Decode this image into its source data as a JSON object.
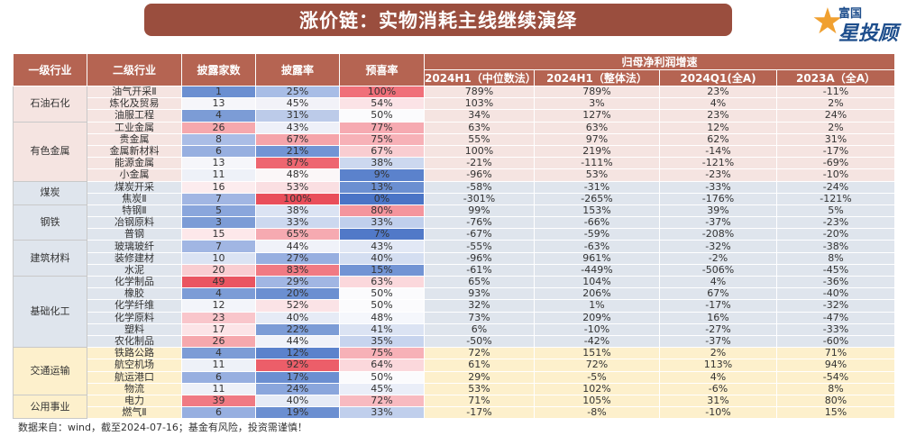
{
  "title": "涨价链：实物消耗主线继续演绎",
  "logo": {
    "top": "富国",
    "main": "星投顾",
    "icon": "star-icon"
  },
  "headers": {
    "col1": "一级行业",
    "col2": "二级行业",
    "col3": "披露家数",
    "col4": "披露率",
    "col5": "预喜率",
    "group": "归母净利润增速",
    "g1": "2024H1（中位数法）",
    "g2": "2024H1（整体法）",
    "g3": "2024Q1(全A)",
    "g4": "2023A（全A）"
  },
  "colors": {
    "header": "#b56452",
    "title": "#9a4e3e",
    "band_pink": "#f5e4e1",
    "band_blue": "#dfe5ed",
    "band_yellow": "#fdf0cc"
  },
  "groups": [
    {
      "name": "石油石化",
      "band": "pink",
      "rows": [
        {
          "sub": "油气开采Ⅱ",
          "count": "1",
          "disc": "25%",
          "pre": "100%",
          "g1": "789%",
          "g2": "789%",
          "g3": "23%",
          "g4": "-11%",
          "c_count": "#6b8fd1",
          "c_disc": "#a8bde6",
          "c_pre": "#f0707a"
        },
        {
          "sub": "炼化及贸易",
          "count": "13",
          "disc": "45%",
          "pre": "54%",
          "g1": "103%",
          "g2": "3%",
          "g3": "4%",
          "g4": "2%",
          "c_count": "#f6f6fa",
          "c_disc": "#f2f2f8",
          "c_pre": "#fbe3e6"
        },
        {
          "sub": "油服工程",
          "count": "4",
          "disc": "31%",
          "pre": "50%",
          "g1": "34%",
          "g2": "127%",
          "g3": "23%",
          "g4": "24%",
          "c_count": "#7c9cd6",
          "c_disc": "#bccbe9",
          "c_pre": "#fbfbfd"
        }
      ]
    },
    {
      "name": "有色金属",
      "band": "pink",
      "rows": [
        {
          "sub": "工业金属",
          "count": "26",
          "disc": "43%",
          "pre": "77%",
          "g1": "63%",
          "g2": "63%",
          "g3": "12%",
          "g4": "2%",
          "c_count": "#f6a8ad",
          "c_disc": "#eef0f8",
          "c_pre": "#f6aab1"
        },
        {
          "sub": "贵金属",
          "count": "8",
          "disc": "67%",
          "pre": "75%",
          "g1": "55%",
          "g2": "97%",
          "g3": "62%",
          "g4": "31%",
          "c_count": "#aabde6",
          "c_disc": "#f5a4aa",
          "c_pre": "#f7b1b7"
        },
        {
          "sub": "金属新材料",
          "count": "6",
          "disc": "21%",
          "pre": "67%",
          "g1": "100%",
          "g2": "219%",
          "g3": "-14%",
          "g4": "-17%",
          "c_count": "#97afe0",
          "c_disc": "#7294d4",
          "c_pre": "#f9cdd1"
        },
        {
          "sub": "能源金属",
          "count": "13",
          "disc": "87%",
          "pre": "38%",
          "g1": "-21%",
          "g2": "-111%",
          "g3": "-121%",
          "g4": "-69%",
          "c_count": "#f6f6fa",
          "c_disc": "#ee6670",
          "c_pre": "#ccd8ef"
        },
        {
          "sub": "小金属",
          "count": "11",
          "disc": "48%",
          "pre": "9%",
          "g1": "-96%",
          "g2": "53%",
          "g3": "-23%",
          "g4": "-10%",
          "c_count": "#eef1f8",
          "c_disc": "#fbf7f8",
          "c_pre": "#5b82cc"
        }
      ]
    },
    {
      "name": "煤炭",
      "band": "blue",
      "rows": [
        {
          "sub": "煤炭开采",
          "count": "16",
          "disc": "53%",
          "pre": "13%",
          "g1": "-58%",
          "g2": "-31%",
          "g3": "-33%",
          "g4": "-24%",
          "c_count": "#fcecee",
          "c_disc": "#fadfe2",
          "c_pre": "#6b8fd1"
        },
        {
          "sub": "焦炭Ⅱ",
          "count": "7",
          "disc": "100%",
          "pre": "0%",
          "g1": "-301%",
          "g2": "-265%",
          "g3": "-176%",
          "g4": "-121%",
          "c_count": "#a1b6e3",
          "c_disc": "#e94e5a",
          "c_pre": "#4a74c6"
        }
      ]
    },
    {
      "name": "钢铁",
      "band": "blue",
      "rows": [
        {
          "sub": "特钢Ⅱ",
          "count": "5",
          "disc": "38%",
          "pre": "80%",
          "g1": "99%",
          "g2": "153%",
          "g3": "39%",
          "g4": "5%",
          "c_count": "#8aa6dc",
          "c_disc": "#dbe3f3",
          "c_pre": "#f4959d"
        },
        {
          "sub": "冶钢原料",
          "count": "3",
          "disc": "33%",
          "pre": "33%",
          "g1": "-76%",
          "g2": "-66%",
          "g3": "-37%",
          "g4": "-23%",
          "c_count": "#7c9cd6",
          "c_disc": "#ccd8ef",
          "c_pre": "#c0cfec"
        },
        {
          "sub": "普钢",
          "count": "15",
          "disc": "65%",
          "pre": "7%",
          "g1": "-67%",
          "g2": "-59%",
          "g3": "-208%",
          "g4": "-20%",
          "c_count": "#fde8ea",
          "c_disc": "#f6aab1",
          "c_pre": "#5179c8"
        }
      ]
    },
    {
      "name": "建筑材料",
      "band": "blue",
      "rows": [
        {
          "sub": "玻璃玻纤",
          "count": "7",
          "disc": "44%",
          "pre": "43%",
          "g1": "-55%",
          "g2": "-63%",
          "g3": "-32%",
          "g4": "-38%",
          "c_count": "#a1b6e3",
          "c_disc": "#f0f2f9",
          "c_pre": "#e2e8f5"
        },
        {
          "sub": "装修建材",
          "count": "10",
          "disc": "27%",
          "pre": "40%",
          "g1": "-96%",
          "g2": "961%",
          "g3": "-2%",
          "g4": "8%",
          "c_count": "#dbe3f3",
          "c_disc": "#97afe0",
          "c_pre": "#d4def1"
        },
        {
          "sub": "水泥",
          "count": "20",
          "disc": "83%",
          "pre": "15%",
          "g1": "-61%",
          "g2": "-449%",
          "g3": "-506%",
          "g4": "-45%",
          "c_count": "#f9cdd1",
          "c_disc": "#f07a83",
          "c_pre": "#7294d4"
        }
      ]
    },
    {
      "name": "基础化工",
      "band": "blue",
      "rows": [
        {
          "sub": "化学制品",
          "count": "49",
          "disc": "29%",
          "pre": "63%",
          "g1": "65%",
          "g2": "104%",
          "g3": "4%",
          "g4": "-36%",
          "c_count": "#ea5561",
          "c_disc": "#a1b6e3",
          "c_pre": "#fbd8dc"
        },
        {
          "sub": "橡胶",
          "count": "4",
          "disc": "20%",
          "pre": "50%",
          "g1": "93%",
          "g2": "206%",
          "g3": "67%",
          "g4": "-40%",
          "c_count": "#7c9cd6",
          "c_disc": "#6b8fd1",
          "c_pre": "#fbfbfd"
        },
        {
          "sub": "化学纤维",
          "count": "12",
          "disc": "52%",
          "pre": "50%",
          "g1": "32%",
          "g2": "1%",
          "g3": "-17%",
          "g4": "-32%",
          "c_count": "#f3f5fa",
          "c_disc": "#fbe3e6",
          "c_pre": "#fbfbfd"
        },
        {
          "sub": "化学原料",
          "count": "23",
          "disc": "40%",
          "pre": "48%",
          "g1": "73%",
          "g2": "209%",
          "g3": "16%",
          "g4": "-47%",
          "c_count": "#f9c6cb",
          "c_disc": "#e6ebf6",
          "c_pre": "#f5f7fc"
        },
        {
          "sub": "塑料",
          "count": "17",
          "disc": "22%",
          "pre": "41%",
          "g1": "6%",
          "g2": "-10%",
          "g3": "-27%",
          "g4": "-33%",
          "c_count": "#fce4e7",
          "c_disc": "#7c9cd6",
          "c_pre": "#dbe3f3"
        },
        {
          "sub": "农化制品",
          "count": "26",
          "disc": "44%",
          "pre": "35%",
          "g1": "-50%",
          "g2": "-42%",
          "g3": "-37%",
          "g4": "-60%",
          "c_count": "#f6a8ad",
          "c_disc": "#f0f2f9",
          "c_pre": "#c7d4ee"
        }
      ]
    },
    {
      "name": "交通运输",
      "band": "yellow",
      "rows": [
        {
          "sub": "铁路公路",
          "count": "4",
          "disc": "12%",
          "pre": "75%",
          "g1": "72%",
          "g2": "151%",
          "g3": "2%",
          "g4": "71%",
          "c_count": "#7c9cd6",
          "c_disc": "#5b82cc",
          "c_pre": "#f7b1b7"
        },
        {
          "sub": "航空机场",
          "count": "11",
          "disc": "92%",
          "pre": "64%",
          "g1": "61%",
          "g2": "72%",
          "g3": "113%",
          "g4": "94%",
          "c_count": "#eef1f8",
          "c_disc": "#ec5e69",
          "c_pre": "#fbd8dc"
        },
        {
          "sub": "航运港口",
          "count": "6",
          "disc": "17%",
          "pre": "50%",
          "g1": "29%",
          "g2": "-5%",
          "g3": "4%",
          "g4": "-54%",
          "c_count": "#97afe0",
          "c_disc": "#6b8fd1",
          "c_pre": "#fbfbfd"
        },
        {
          "sub": "物流",
          "count": "11",
          "disc": "24%",
          "pre": "45%",
          "g1": "53%",
          "g2": "102%",
          "g3": "-6%",
          "g4": "8%",
          "c_count": "#eef1f8",
          "c_disc": "#8aa6dc",
          "c_pre": "#eaeef8"
        }
      ]
    },
    {
      "name": "公用事业",
      "band": "yellow",
      "rows": [
        {
          "sub": "电力",
          "count": "39",
          "disc": "40%",
          "pre": "72%",
          "g1": "71%",
          "g2": "105%",
          "g3": "31%",
          "g4": "80%",
          "c_count": "#f07a83",
          "c_disc": "#e6ebf6",
          "c_pre": "#f8bac0"
        },
        {
          "sub": "燃气Ⅱ",
          "count": "6",
          "disc": "19%",
          "pre": "33%",
          "g1": "-17%",
          "g2": "-8%",
          "g3": "-10%",
          "g4": "15%",
          "c_count": "#97afe0",
          "c_disc": "#6b8fd1",
          "c_pre": "#c0cfec"
        }
      ]
    }
  ],
  "footer": "数据来自：wind，截至2024-07-16；基金有风险，投资需谨慎！"
}
